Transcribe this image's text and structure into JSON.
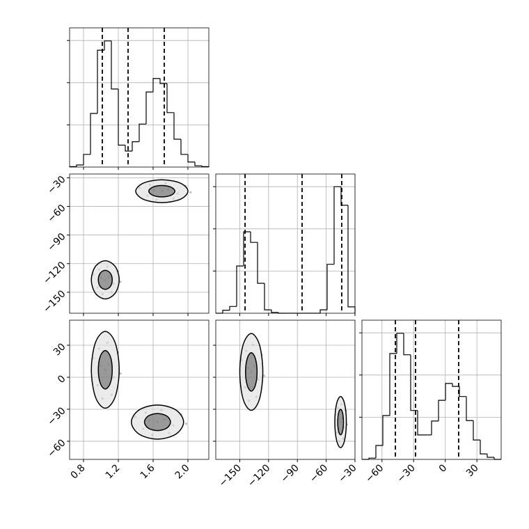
{
  "chart_data": [
    {
      "type": "histogram",
      "color": "#000000",
      "grid": true,
      "x_tick_labels": false,
      "y_tick_labels": false,
      "xlim": [
        0.64,
        2.24
      ],
      "ylim": [
        0,
        330
      ],
      "xticks": [
        0.8,
        1.2,
        1.6,
        2
      ],
      "yticks": [
        100,
        200,
        300
      ],
      "bins": [
        0.64,
        0.72,
        0.8,
        0.88,
        0.96,
        1.04,
        1.12,
        1.2,
        1.28,
        1.36,
        1.44,
        1.52,
        1.6,
        1.68,
        1.76,
        1.84,
        1.92,
        2.0,
        2.08,
        2.16,
        2.24
      ],
      "values": [
        1,
        5,
        30,
        127,
        277,
        299,
        185,
        52,
        38,
        60,
        102,
        178,
        210,
        198,
        129,
        66,
        30,
        12,
        3,
        1
      ],
      "quantiles": [
        1.016,
        1.312,
        1.728
      ]
    },
    {
      "type": "scatter",
      "color": "#000000",
      "grid": true,
      "x_tick_labels": false,
      "y_tick_labels": true,
      "xlim": [
        0.64,
        2.24
      ],
      "ylim": [
        -172,
        -26
      ],
      "xticks": [
        0.8,
        1.2,
        1.6,
        2
      ],
      "yticks": [
        {
          "value": -30,
          "label": "−30"
        },
        {
          "value": -60,
          "label": "−60"
        },
        {
          "value": -90,
          "label": "−90"
        },
        {
          "value": -120,
          "label": "−120"
        },
        {
          "value": -150,
          "label": "−150"
        }
      ],
      "points": {
        "x": [
          1.7,
          1.775,
          1.61,
          1.88,
          1.535,
          1.745,
          1.64,
          1.97,
          1.445,
          1.835,
          1.565,
          2.03,
          1.05,
          1.09,
          1.002,
          1.146,
          0.962,
          1.074,
          1.018,
          1.194,
          0.914,
          1.122,
          0.978,
          1.226
        ],
        "y": [
          -44,
          -42.2,
          -42.8,
          -46.4,
          -48.8,
          -35.6,
          -53,
          -38.6,
          -40.4,
          -51.8,
          -37.4,
          -45.2,
          -137,
          -134,
          -135,
          -141,
          -145,
          -123,
          -152,
          -128,
          -131,
          -150,
          -126,
          -139
        ]
      },
      "contours": [
        {
          "x": [
            2.0,
            1.912,
            1.7,
            1.488,
            1.4,
            1.488,
            1.7,
            1.912
          ],
          "y": [
            -44,
            -35.5,
            -32,
            -35.5,
            -44,
            -52.5,
            -56,
            -52.5
          ]
        },
        {
          "x": [
            1.85,
            1.806,
            1.7,
            1.594,
            1.55,
            1.594,
            1.7,
            1.806
          ],
          "y": [
            -44,
            -39.8,
            -38,
            -39.8,
            -44,
            -48.2,
            -50,
            -48.2
          ]
        },
        {
          "x": [
            1.21,
            1.163,
            1.05,
            0.937,
            0.89,
            0.937,
            1.05,
            1.163
          ],
          "y": [
            -137,
            -122.9,
            -117,
            -122.9,
            -137,
            -151.1,
            -157,
            -151.1
          ]
        },
        {
          "x": [
            1.13,
            1.107,
            1.05,
            0.993,
            0.97,
            0.993,
            1.05,
            1.107
          ],
          "y": [
            -137,
            -129.9,
            -127,
            -129.9,
            -137,
            -144.1,
            -147,
            -144.1
          ]
        }
      ]
    },
    {
      "type": "histogram",
      "color": "#000000",
      "grid": true,
      "x_tick_labels": false,
      "y_tick_labels": false,
      "xlim": [
        -175,
        -30
      ],
      "ylim": [
        0,
        330
      ],
      "xticks": [
        -150,
        -120,
        -90,
        -60,
        -30
      ],
      "yticks": [
        100,
        200,
        300
      ],
      "bins": [
        -175,
        -167.75,
        -160.5,
        -153.25,
        -146,
        -138.75,
        -131.5,
        -124.25,
        -117,
        -109.75,
        -102.5,
        -95.25,
        -88,
        -80.75,
        -73.5,
        -66.25,
        -59,
        -51.75,
        -44.5,
        -37.25,
        -30
      ],
      "values": [
        0,
        7,
        16,
        112,
        193,
        168,
        71,
        8,
        2,
        0,
        0,
        0,
        0,
        0,
        0,
        8,
        116,
        300,
        256,
        15
      ],
      "quantiles": [
        -144.5,
        -85.1,
        -43.8
      ]
    },
    {
      "type": "scatter",
      "color": "#000000",
      "grid": true,
      "x_tick_labels": true,
      "y_tick_labels": true,
      "xlim": [
        0.64,
        2.24
      ],
      "ylim": [
        -77,
        53.5
      ],
      "xticks": [
        0.8,
        1.2,
        1.6,
        {
          "value": 2,
          "label": "2.0"
        }
      ],
      "yticks": [
        30,
        0,
        {
          "value": -30,
          "label": "−30"
        },
        {
          "value": -60,
          "label": "−60"
        }
      ],
      "points": {
        "x": [
          1.05,
          1.09,
          1.002,
          1.146,
          0.962,
          1.074,
          1.018,
          1.194,
          0.914,
          1.122,
          0.978,
          1.226,
          1.65,
          1.725,
          1.56,
          1.83,
          1.485,
          1.695,
          1.59,
          1.92,
          1.395,
          1.785,
          1.515,
          1.98
        ],
        "y": [
          7,
          12.4,
          10.6,
          -0.2,
          -7.4,
          32.2,
          -20,
          23.2,
          17.8,
          -16.4,
          26.8,
          3.4,
          -42,
          -39.6,
          -40.4,
          -45.2,
          -48.4,
          -30.8,
          -54,
          -34.8,
          -37.2,
          -52.4,
          -33.2,
          -43.6
        ]
      },
      "contours": [
        {
          "x": [
            1.21,
            1.163,
            1.05,
            0.937,
            0.89,
            0.937,
            1.05,
            1.163
          ],
          "y": [
            7,
            32.5,
            43,
            32.5,
            7,
            -18.5,
            -29,
            -18.5
          ]
        },
        {
          "x": [
            1.13,
            1.107,
            1.05,
            0.993,
            0.97,
            0.993,
            1.05,
            1.107
          ],
          "y": [
            7,
            19.7,
            25,
            19.7,
            7,
            -5.7,
            -11,
            -5.7
          ]
        },
        {
          "x": [
            1.95,
            1.862,
            1.65,
            1.438,
            1.35,
            1.438,
            1.65,
            1.862
          ],
          "y": [
            -42,
            -30.7,
            -26,
            -30.7,
            -42,
            -53.3,
            -58,
            -53.3
          ]
        },
        {
          "x": [
            1.8,
            1.756,
            1.65,
            1.544,
            1.5,
            1.544,
            1.65,
            1.756
          ],
          "y": [
            -42,
            -36.3,
            -34,
            -36.3,
            -42,
            -47.7,
            -50,
            -47.7
          ]
        }
      ]
    },
    {
      "type": "scatter",
      "color": "#000000",
      "grid": true,
      "x_tick_labels": true,
      "y_tick_labels": false,
      "xlim": [
        -175,
        -30
      ],
      "ylim": [
        -77,
        53.5
      ],
      "xticks": [
        {
          "value": -150,
          "label": "−150"
        },
        {
          "value": -120,
          "label": "−120"
        },
        {
          "value": -90,
          "label": "−90"
        },
        {
          "value": -60,
          "label": "−60"
        },
        {
          "value": -30,
          "label": "−30"
        }
      ],
      "yticks": [
        30,
        0,
        -30,
        -60
      ],
      "points": {
        "x": [
          -138,
          -135,
          -141.6,
          -130.8,
          -144.6,
          -136.2,
          -140.4,
          -127.2,
          -148.2,
          -132.6,
          -143.4,
          -124.8,
          -45,
          -43.5,
          -46.8,
          -41.4,
          -48.3,
          -44.1,
          -46.2,
          -39.6,
          -50.1,
          -42.3,
          -47.7,
          -38.4
        ],
        "y": [
          5,
          10.4,
          8.6,
          -2.2,
          -9.4,
          30.2,
          -22,
          21.2,
          15.8,
          -18.4,
          24.8,
          1.4,
          -42,
          -38.4,
          -39.6,
          -46.8,
          -51.6,
          -25.2,
          -60,
          -31.2,
          -34.8,
          -57.6,
          -28.8,
          -44.4
        ]
      },
      "contours": [
        {
          "x": [
            -126,
            -129.5,
            -138,
            -146.5,
            -150,
            -146.5,
            -138,
            -129.5
          ],
          "y": [
            5,
            30.5,
            41,
            30.5,
            5,
            -20.5,
            -31,
            -20.5
          ]
        },
        {
          "x": [
            -132,
            -133.8,
            -138,
            -142.2,
            -144,
            -142.2,
            -138,
            -133.8
          ],
          "y": [
            5,
            17.7,
            23,
            17.7,
            5,
            -7.7,
            -13,
            -7.7
          ]
        },
        {
          "x": [
            -39,
            -40.8,
            -45,
            -49.2,
            -51,
            -49.2,
            -45,
            -40.8
          ],
          "y": [
            -42,
            -25,
            -18,
            -25,
            -42,
            -59,
            -66,
            -59
          ]
        },
        {
          "x": [
            -42,
            -42.9,
            -45,
            -47.1,
            -48,
            -47.1,
            -45,
            -42.9
          ],
          "y": [
            -42,
            -33.5,
            -30,
            -33.5,
            -42,
            -50.5,
            -54,
            -50.5
          ]
        }
      ]
    },
    {
      "type": "histogram",
      "color": "#000000",
      "grid": true,
      "x_tick_labels": true,
      "y_tick_labels": false,
      "xlim": [
        -79,
        53
      ],
      "ylim": [
        0,
        330
      ],
      "xticks": [
        {
          "value": -60,
          "label": "−60"
        },
        {
          "value": -30,
          "label": "−30"
        },
        0,
        30
      ],
      "yticks": [
        100,
        200,
        300
      ],
      "bins": [
        -79,
        -72.4,
        -65.8,
        -59.2,
        -52.6,
        -46,
        -39.4,
        -32.8,
        -26.2,
        -19.6,
        -13,
        -6.4,
        0.2,
        6.8,
        13.4,
        20,
        26.6,
        33.2,
        39.8,
        46.4,
        53
      ],
      "values": [
        0,
        3,
        33,
        104,
        251,
        299,
        248,
        116,
        58,
        58,
        91,
        140,
        180,
        173,
        149,
        92,
        46,
        13,
        5,
        0
      ],
      "quantiles": [
        -47.3,
        -28.2,
        12.7
      ]
    }
  ]
}
